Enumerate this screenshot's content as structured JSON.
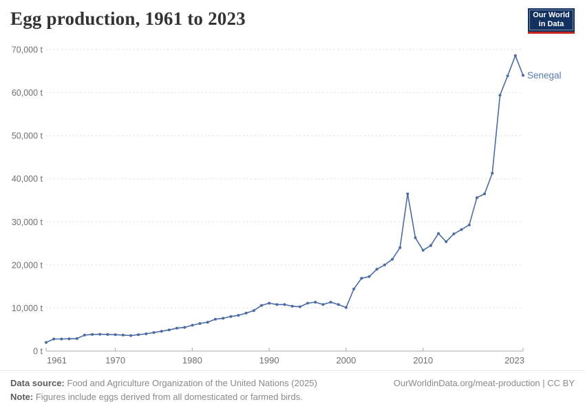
{
  "header": {
    "title": "Egg production, 1961 to 2023"
  },
  "logo": {
    "line1": "Our World",
    "line2": "in Data"
  },
  "chart_data": {
    "type": "line",
    "title": "Egg production, 1961 to 2023",
    "unit": "t",
    "grid": "horizontal-dashed",
    "legend": "end-of-line-label",
    "ylim": [
      0,
      70000
    ],
    "ytick_step": 10000,
    "ytick_labels": [
      "0 t",
      "10,000 t",
      "20,000 t",
      "30,000 t",
      "40,000 t",
      "50,000 t",
      "60,000 t",
      "70,000 t"
    ],
    "xticks": [
      1961,
      1970,
      1980,
      1990,
      2000,
      2010,
      2023
    ],
    "xtick_labels": [
      "1961",
      "1970",
      "1980",
      "1990",
      "2000",
      "2010",
      "2023"
    ],
    "x": [
      1961,
      1962,
      1963,
      1964,
      1965,
      1966,
      1967,
      1968,
      1969,
      1970,
      1971,
      1972,
      1973,
      1974,
      1975,
      1976,
      1977,
      1978,
      1979,
      1980,
      1981,
      1982,
      1983,
      1984,
      1985,
      1986,
      1987,
      1988,
      1989,
      1990,
      1991,
      1992,
      1993,
      1994,
      1995,
      1996,
      1997,
      1998,
      1999,
      2000,
      2001,
      2002,
      2003,
      2004,
      2005,
      2006,
      2007,
      2008,
      2009,
      2010,
      2011,
      2012,
      2013,
      2014,
      2015,
      2016,
      2017,
      2018,
      2019,
      2020,
      2021,
      2022,
      2023
    ],
    "series": [
      {
        "name": "Senegal",
        "values": [
          2000,
          2800,
          2800,
          2850,
          2900,
          3700,
          3850,
          3900,
          3850,
          3800,
          3700,
          3600,
          3800,
          4000,
          4300,
          4600,
          4900,
          5300,
          5500,
          6000,
          6400,
          6700,
          7400,
          7600,
          8000,
          8300,
          8800,
          9400,
          10600,
          11100,
          10800,
          10800,
          10400,
          10300,
          11100,
          11350,
          10800,
          11350,
          10800,
          10100,
          14400,
          16900,
          17300,
          19000,
          20000,
          21300,
          24000,
          36500,
          26300,
          23400,
          24500,
          27300,
          25400,
          27200,
          28200,
          29300,
          35600,
          36500,
          41300,
          59400,
          63900,
          68600,
          64000
        ]
      }
    ],
    "colors": {
      "line": "#4a6ba3",
      "entity_label": "#5878ad",
      "gridline": "#dcdcdc",
      "axis": "#a8a8a8",
      "tick_text": "#6f6f6f"
    }
  },
  "footer": {
    "source_label": "Data source:",
    "source_text": "Food and Agriculture Organization of the United Nations (2025)",
    "note_label": "Note:",
    "note_text": "Figures include eggs derived from all domesticated or farmed birds.",
    "attribution": "OurWorldinData.org/meat-production | CC BY"
  }
}
